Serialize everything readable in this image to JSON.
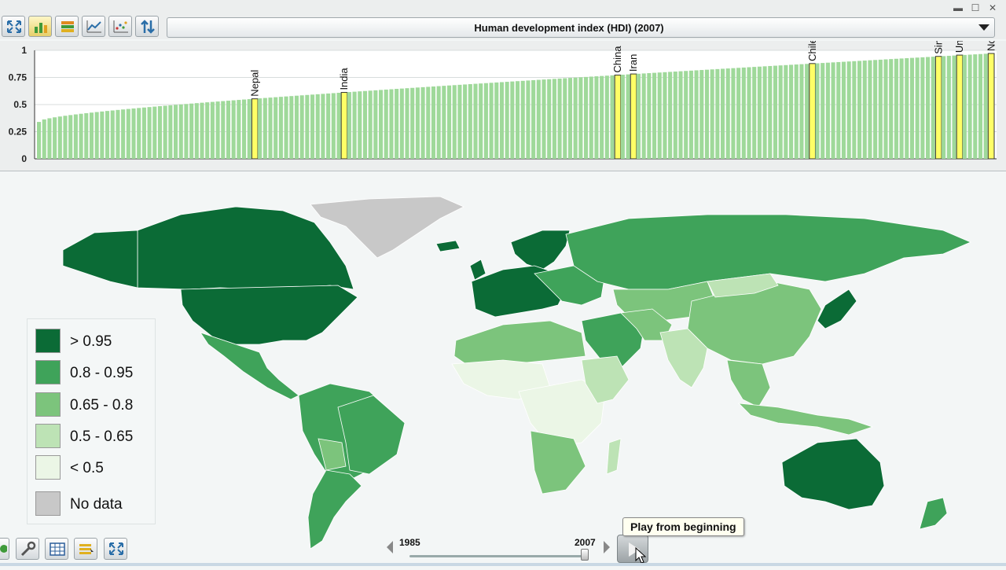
{
  "window": {
    "minimize": "▬",
    "maximize": "☐",
    "close": "✕"
  },
  "toolbar": {
    "buttons": [
      {
        "name": "fullscreen",
        "icon": "expand-arrows-icon"
      },
      {
        "name": "bar-chart",
        "icon": "bar-chart-icon"
      },
      {
        "name": "sorted-bars",
        "icon": "stacked-bars-icon"
      },
      {
        "name": "line-chart",
        "icon": "line-chart-icon"
      },
      {
        "name": "scatter-plot",
        "icon": "scatter-plot-icon"
      },
      {
        "name": "sort",
        "icon": "sort-arrows-icon"
      }
    ]
  },
  "indicator": {
    "label": "Human development index (HDI) (2007)"
  },
  "chart_data": {
    "type": "bar",
    "ylim": [
      0,
      1
    ],
    "yticks": [
      "0",
      "0.25",
      "0.5",
      "0.75",
      "1"
    ],
    "grid": true,
    "bar_color": "#9fd99a",
    "highlight_color": "#ffff66",
    "count": 182,
    "min_value": 0.34,
    "max_value": 0.971,
    "highlighted": [
      {
        "name": "Nepal",
        "value": 0.553
      },
      {
        "name": "India",
        "value": 0.612
      },
      {
        "name": "China",
        "value": 0.772
      },
      {
        "name": "Iran",
        "value": 0.782
      },
      {
        "name": "Chile",
        "value": 0.878
      },
      {
        "name": "Singapore",
        "value": 0.944
      },
      {
        "name": "United States",
        "value": 0.956
      },
      {
        "name": "Norway",
        "value": 0.971
      }
    ]
  },
  "legend": {
    "items": [
      {
        "label": "> 0.95",
        "color": "#0b6b36"
      },
      {
        "label": "0.8 - 0.95",
        "color": "#3fa35a"
      },
      {
        "label": "0.65 - 0.8",
        "color": "#7cc47c"
      },
      {
        "label": "0.5 - 0.65",
        "color": "#bde3b5"
      },
      {
        "label": "< 0.5",
        "color": "#ebf6e6"
      },
      {
        "label": "No data",
        "color": "#c8c8c8"
      }
    ]
  },
  "timeline": {
    "start": "1985",
    "end": "2007",
    "current_year": 2007,
    "play_tooltip": "Play from beginning"
  },
  "bottom_tools": [
    {
      "name": "map-settings",
      "icon": "wrench-icon"
    },
    {
      "name": "table-view",
      "icon": "table-icon"
    },
    {
      "name": "legend-toggle",
      "icon": "legend-icon"
    },
    {
      "name": "fullscreen-map",
      "icon": "expand-arrows-icon"
    }
  ]
}
